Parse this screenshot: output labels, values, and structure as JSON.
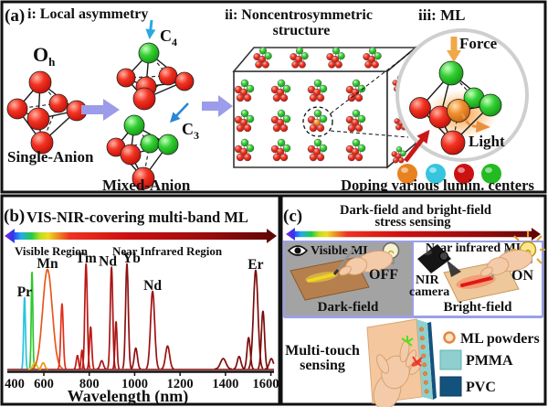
{
  "panel_a": {
    "label": "(a)",
    "title_i": "i: Local asymmetry",
    "title_ii_line1": "ii: Noncentrosymmetric",
    "title_ii_line2": "structure",
    "title_iii": "iii: ML",
    "oh": "O",
    "oh_sub": "h",
    "c4": "C",
    "c4_sub": "4",
    "c3": "C",
    "c3_sub": "3",
    "single_anion": "Single-Anion",
    "mixed_anion": "Mixed-Anion",
    "force": "Force",
    "light": "Light",
    "doping_caption": "Doping various lumin. centers",
    "lumin_center_colors": [
      "#e8821e",
      "#35c5dd",
      "#cc1111",
      "#22bb22"
    ]
  },
  "panel_b": {
    "label": "(b)",
    "title": "VIS-NIR-covering multi-band ML",
    "visible_region_label": "Visible Region",
    "visible_region_color": "#18a818",
    "nir_region_label": "Near Infrared Region",
    "nir_region_color": "#bb1111"
  },
  "chart_data": {
    "type": "line",
    "title": "VIS-NIR-covering multi-band ML",
    "xlabel": "Wavelength (nm)",
    "ylabel": "",
    "x_ticks": [
      400,
      600,
      800,
      1000,
      1200,
      1400,
      1600
    ],
    "x_range": [
      440,
      1620
    ],
    "grid": false,
    "legend_position": "none",
    "peaks": [
      {
        "label": "Pr",
        "center": 515,
        "height": 0.68,
        "sigma": 4,
        "color": "#28c4e0"
      },
      {
        "label": "",
        "center": 548,
        "height": 0.92,
        "sigma": 3.5,
        "color": "#2cc82c"
      },
      {
        "label": "",
        "center": 560,
        "height": 0.06,
        "sigma": 9,
        "color": "#ddc81c"
      },
      {
        "label": "",
        "center": 597,
        "height": 0.06,
        "sigma": 7,
        "color": "#e8951c"
      },
      {
        "label": "Mn",
        "center": 616,
        "height": 0.95,
        "sigma": 21,
        "color": "#e8581c"
      },
      {
        "label": "",
        "center": 680,
        "height": 0.62,
        "sigma": 5.5,
        "color": "#e03018"
      },
      {
        "label": "",
        "center": 748,
        "height": 0.13,
        "sigma": 5,
        "color": "#c01a12"
      },
      {
        "label": "",
        "center": 768,
        "height": 0.18,
        "sigma": 4,
        "color": "#c01a12"
      },
      {
        "label": "Tm",
        "center": 786,
        "height": 1.0,
        "sigma": 5.5,
        "color": "#bb1712"
      },
      {
        "label": "",
        "center": 806,
        "height": 0.4,
        "sigma": 5,
        "color": "#bb1712"
      },
      {
        "label": "",
        "center": 855,
        "height": 0.08,
        "sigma": 7,
        "color": "#a81414"
      },
      {
        "label": "Nd",
        "label_dx": -4,
        "center": 898,
        "height": 0.97,
        "sigma": 5.5,
        "color": "#a81414"
      },
      {
        "label": "",
        "center": 918,
        "height": 0.45,
        "sigma": 4.5,
        "color": "#a81414"
      },
      {
        "label": "Yb",
        "label_dx": 5,
        "center": 966,
        "height": 1.0,
        "sigma": 6,
        "color": "#8f1010"
      },
      {
        "label": "",
        "center": 1005,
        "height": 0.2,
        "sigma": 7,
        "color": "#8f1010"
      },
      {
        "label": "Nd",
        "center": 1079,
        "height": 0.74,
        "sigma": 9,
        "color": "#9c1111"
      },
      {
        "label": "",
        "center": 1145,
        "height": 0.22,
        "sigma": 9,
        "color": "#9c1111"
      },
      {
        "label": "",
        "center": 1390,
        "height": 0.1,
        "sigma": 12,
        "color": "#7d0c0c"
      },
      {
        "label": "",
        "center": 1460,
        "height": 0.12,
        "sigma": 8,
        "color": "#7d0c0c"
      },
      {
        "label": "",
        "center": 1502,
        "height": 0.3,
        "sigma": 7,
        "color": "#7d0c0c"
      },
      {
        "label": "Er",
        "center": 1533,
        "height": 0.94,
        "sigma": 10,
        "color": "#7d0c0c"
      },
      {
        "label": "",
        "center": 1565,
        "height": 0.55,
        "sigma": 7,
        "color": "#7d0c0c"
      },
      {
        "label": "",
        "center": 1602,
        "height": 0.1,
        "sigma": 9,
        "color": "#7d0c0c"
      }
    ]
  },
  "panel_c": {
    "label": "(c)",
    "title_line1": "Dark-field and bright-field",
    "title_line2": "stress sensing",
    "visible_ml_label": "Visible ML",
    "visible_ml_color": "#2cc82c",
    "nir_ml_label": "Near infrared ML",
    "nir_ml_color": "#cc1111",
    "off_label": "OFF",
    "on_label": "ON",
    "nir_camera_line1": "NIR",
    "nir_camera_line2": "camera",
    "dark_field_label": "Dark-field",
    "bright_field_label": "Bright-field",
    "multi_touch_line1": "Multi-touch",
    "multi_touch_line2": "sensing",
    "legend": [
      {
        "label": "ML powders",
        "color": "#e8873c"
      },
      {
        "label": "PMMA",
        "color": "#8fcfcf"
      },
      {
        "label": "PVC",
        "color": "#14527e"
      }
    ]
  }
}
